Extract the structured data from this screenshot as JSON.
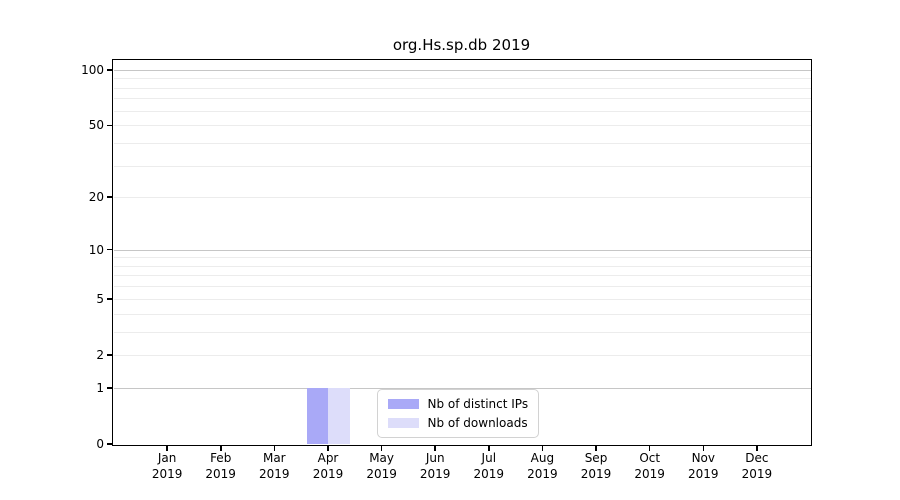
{
  "chart_data": {
    "type": "bar",
    "title": "org.Hs.sp.db 2019",
    "categories": [
      "Jan 2019",
      "Feb 2019",
      "Mar 2019",
      "Apr 2019",
      "May 2019",
      "Jun 2019",
      "Jul 2019",
      "Aug 2019",
      "Sep 2019",
      "Oct 2019",
      "Nov 2019",
      "Dec 2019"
    ],
    "series": [
      {
        "name": "Nb of distinct IPs",
        "color": "#a9a9f7",
        "values": [
          0,
          0,
          0,
          1,
          0,
          0,
          0,
          0,
          0,
          0,
          0,
          0
        ]
      },
      {
        "name": "Nb of downloads",
        "color": "#ddddfa",
        "values": [
          0,
          0,
          0,
          1,
          0,
          0,
          0,
          0,
          0,
          0,
          0,
          0
        ]
      }
    ],
    "xlabel": "",
    "ylabel": "",
    "yscale": "log1p",
    "ylim": [
      0,
      113
    ],
    "y_tick_values": [
      0,
      1,
      2,
      5,
      10,
      20,
      50,
      100
    ],
    "grid": {
      "major_values": [
        1,
        10,
        100
      ],
      "minor_values": [
        2,
        3,
        4,
        5,
        6,
        7,
        8,
        9,
        20,
        30,
        40,
        50,
        60,
        70,
        80,
        90
      ]
    },
    "legend_position": "lower center"
  },
  "styles": {
    "major_grid_color": "#c6c6c6",
    "minor_grid_color": "#ececec",
    "axis_color": "#000000",
    "legend_border_color": "#d2d2d2",
    "background": "#ffffff"
  }
}
